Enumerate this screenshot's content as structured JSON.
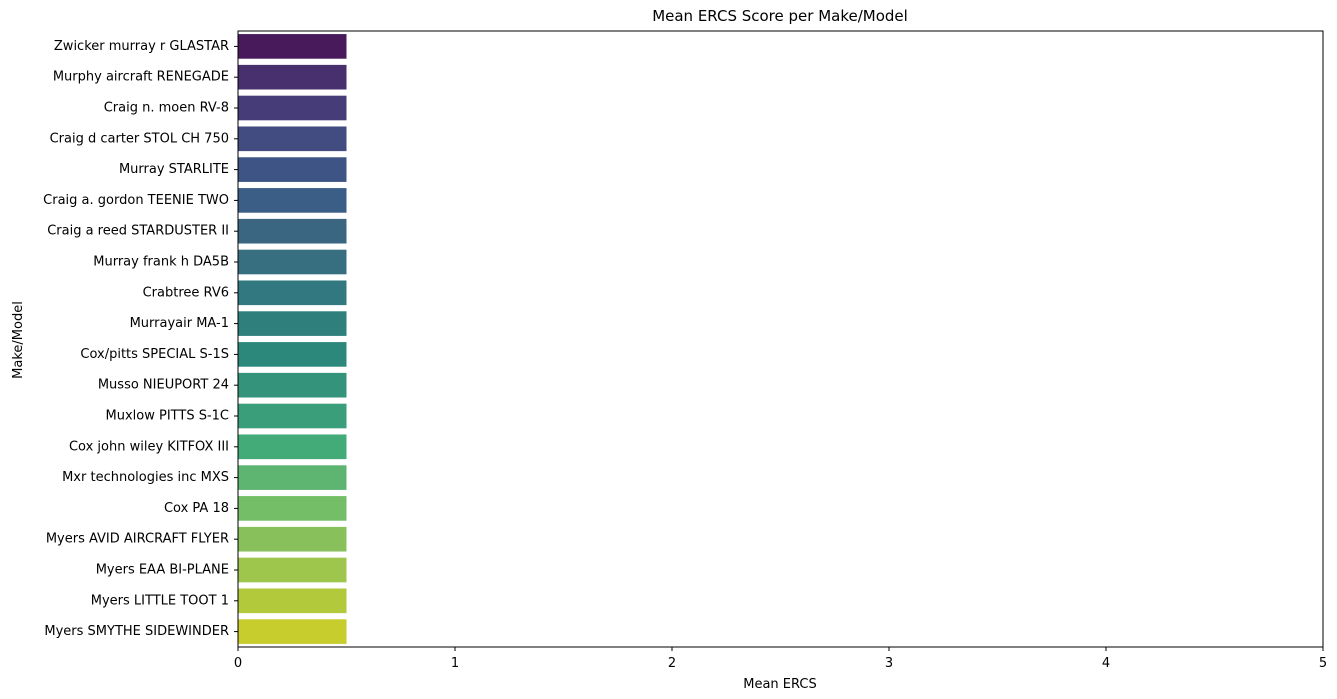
{
  "chart_data": {
    "type": "bar",
    "orientation": "horizontal",
    "title": "Mean ERCS Score per Make/Model",
    "xlabel": "Mean ERCS",
    "ylabel": "Make/Model",
    "xlim": [
      0,
      5
    ],
    "xticks": [
      0,
      1,
      2,
      3,
      4,
      5
    ],
    "grid": false,
    "categories": [
      "Zwicker murray r GLASTAR",
      "Murphy aircraft RENEGADE",
      "Craig n. moen RV-8",
      "Craig d carter STOL CH 750",
      "Murray STARLITE",
      "Craig a. gordon TEENIE TWO",
      "Craig a reed STARDUSTER II",
      "Murray frank h DA5B",
      "Crabtree RV6",
      "Murrayair MA-1",
      "Cox/pitts SPECIAL S-1S",
      "Musso NIEUPORT 24",
      "Muxlow PITTS S-1C",
      "Cox john wiley KITFOX III",
      "Mxr technologies inc MXS",
      "Cox PA 18",
      "Myers AVID AIRCRAFT FLYER",
      "Myers EAA BI-PLANE",
      "Myers LITTLE TOOT 1",
      "Myers SMYTHE SIDEWINDER"
    ],
    "values": [
      0.5,
      0.5,
      0.5,
      0.5,
      0.5,
      0.5,
      0.5,
      0.5,
      0.5,
      0.5,
      0.5,
      0.5,
      0.5,
      0.5,
      0.5,
      0.5,
      0.5,
      0.5,
      0.5,
      0.5
    ],
    "colors": [
      "#481a5b",
      "#482f6e",
      "#463d78",
      "#424c81",
      "#3d5484",
      "#3a5e85",
      "#3a6682",
      "#376f80",
      "#327880",
      "#2f7f7d",
      "#2d887c",
      "#33947b",
      "#3a9e7b",
      "#43ab78",
      "#5db571",
      "#73be67",
      "#88c05c",
      "#9ec64c",
      "#b2c93b",
      "#c6cd2d"
    ]
  }
}
